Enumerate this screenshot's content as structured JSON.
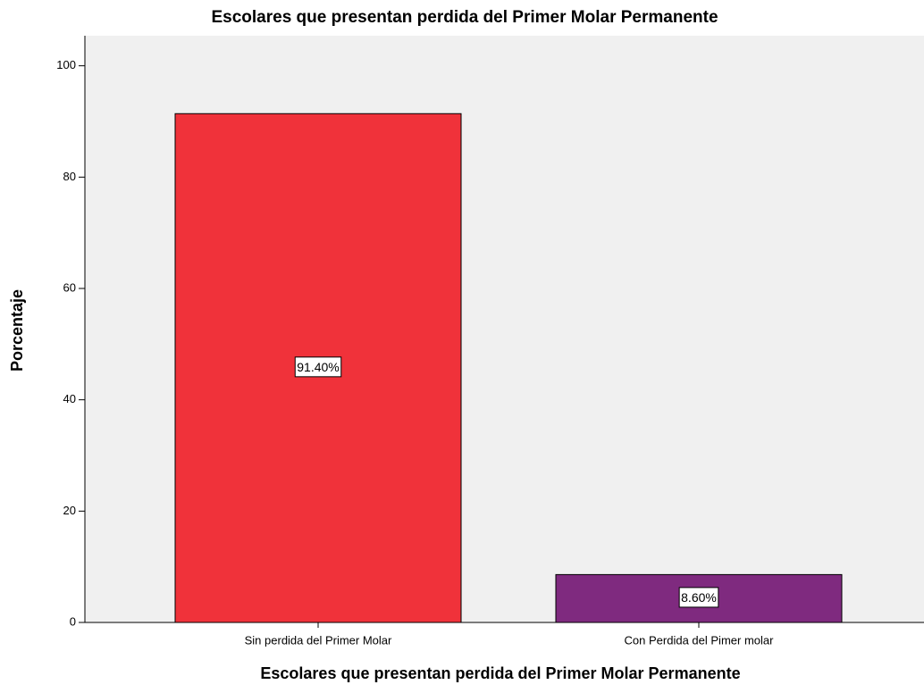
{
  "chart_data": {
    "type": "bar",
    "title": "Escolares que presentan perdida del Primer Molar Permanente",
    "x_label": "Escolares que presentan perdida del Primer Molar Permanente",
    "y_label": "Porcentaje",
    "categories": [
      "Sin perdida del Primer Molar",
      "Con Perdida del Pimer molar"
    ],
    "values": [
      91.4,
      8.6
    ],
    "value_labels": [
      "91.40%",
      "8.60%"
    ],
    "colors": [
      "#f0323a",
      "#7f2a7f"
    ],
    "ylim": [
      0,
      105.4
    ],
    "yticks": [
      0,
      20,
      40,
      60,
      80,
      100
    ],
    "grid": false
  }
}
